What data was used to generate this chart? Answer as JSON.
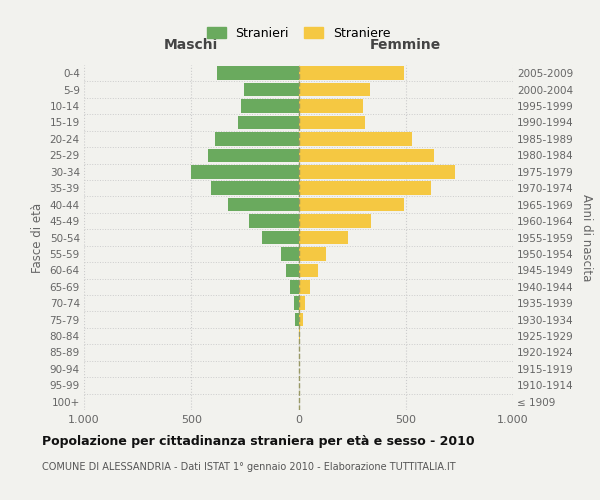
{
  "age_groups": [
    "100+",
    "95-99",
    "90-94",
    "85-89",
    "80-84",
    "75-79",
    "70-74",
    "65-69",
    "60-64",
    "55-59",
    "50-54",
    "45-49",
    "40-44",
    "35-39",
    "30-34",
    "25-29",
    "20-24",
    "15-19",
    "10-14",
    "5-9",
    "0-4"
  ],
  "birth_years": [
    "≤ 1909",
    "1910-1914",
    "1915-1919",
    "1920-1924",
    "1925-1929",
    "1930-1934",
    "1935-1939",
    "1940-1944",
    "1945-1949",
    "1950-1954",
    "1955-1959",
    "1960-1964",
    "1965-1969",
    "1970-1974",
    "1975-1979",
    "1980-1984",
    "1985-1989",
    "1990-1994",
    "1995-1999",
    "2000-2004",
    "2005-2009"
  ],
  "males": [
    0,
    0,
    0,
    0,
    0,
    15,
    20,
    40,
    60,
    80,
    170,
    230,
    330,
    410,
    500,
    420,
    390,
    280,
    270,
    255,
    380
  ],
  "females": [
    0,
    0,
    0,
    0,
    5,
    20,
    30,
    55,
    90,
    130,
    230,
    340,
    490,
    620,
    730,
    630,
    530,
    310,
    300,
    335,
    490
  ],
  "male_color": "#6aaa5e",
  "female_color": "#f5c842",
  "background_color": "#f2f2ee",
  "grid_color": "#cccccc",
  "title": "Popolazione per cittadinanza straniera per età e sesso - 2010",
  "subtitle": "COMUNE DI ALESSANDRIA - Dati ISTAT 1° gennaio 2010 - Elaborazione TUTTITALIA.IT",
  "left_label": "Maschi",
  "right_label": "Femmine",
  "ylabel_left": "Fasce di età",
  "ylabel_right": "Anni di nascita",
  "legend_male": "Stranieri",
  "legend_female": "Straniere",
  "xlim": 1000,
  "xticklabels": [
    "1.000",
    "500",
    "0",
    "500",
    "1.000"
  ]
}
